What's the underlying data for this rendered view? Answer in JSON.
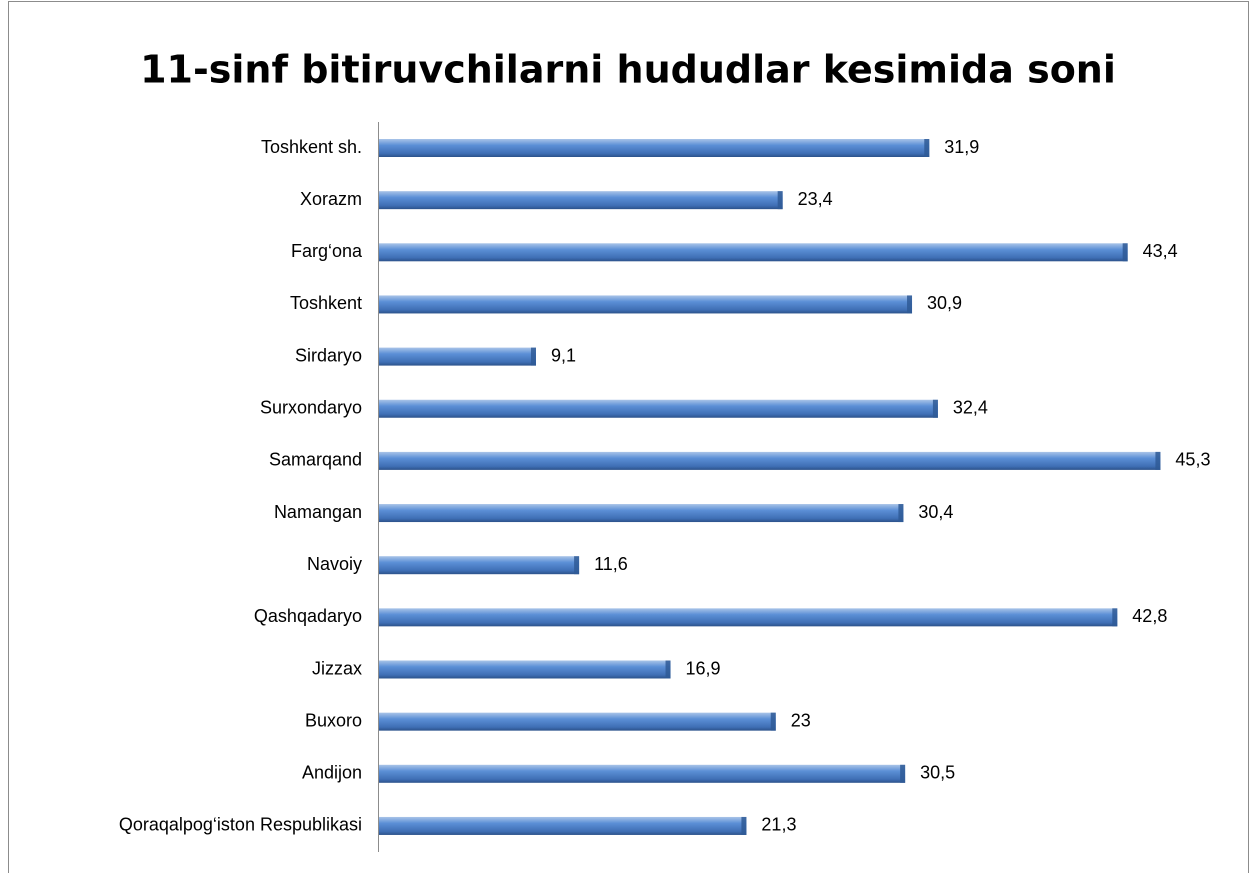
{
  "chart_data": {
    "type": "bar",
    "orientation": "horizontal",
    "title": "11-sinf bitiruvchilarni hududlar kesimida soni",
    "categories": [
      "Toshkent sh.",
      "Xorazm",
      "Farg‘ona",
      "Toshkent",
      "Sirdaryo",
      "Surxondaryo",
      "Samarqand",
      "Namangan",
      "Navoiy",
      "Qashqadaryo",
      "Jizzax",
      "Buxoro",
      "Andijon",
      "Qoraqalpog‘iston Respublikasi"
    ],
    "values": [
      31.9,
      23.4,
      43.4,
      30.9,
      9.1,
      32.4,
      45.3,
      30.4,
      11.6,
      42.8,
      16.9,
      23,
      30.5,
      21.3
    ],
    "value_labels": [
      "31,9",
      "23,4",
      "43,4",
      "30,9",
      "9,1",
      "32,4",
      "45,3",
      "30,4",
      "11,6",
      "42,8",
      "16,9",
      "23",
      "30,5",
      "21,3"
    ],
    "color": "#4f81bd"
  }
}
